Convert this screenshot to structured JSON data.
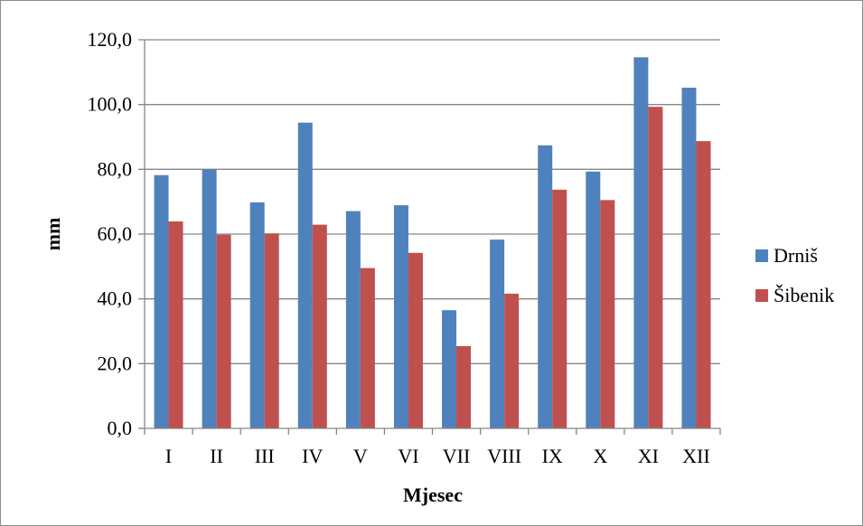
{
  "chart_data": {
    "type": "bar",
    "title": "",
    "xlabel": "Mjesec",
    "ylabel": "mm",
    "categories": [
      "I",
      "II",
      "III",
      "IV",
      "V",
      "VI",
      "VII",
      "VIII",
      "IX",
      "X",
      "XI",
      "XII"
    ],
    "series": [
      {
        "name": "Drniš",
        "color": "#4f81bd",
        "values": [
          78.2,
          80.0,
          69.8,
          94.4,
          67.1,
          68.9,
          36.5,
          58.3,
          87.4,
          79.3,
          114.6,
          105.2
        ]
      },
      {
        "name": "Šibenik",
        "color": "#c0504d",
        "values": [
          63.9,
          59.8,
          60.2,
          62.9,
          49.5,
          54.2,
          25.4,
          41.6,
          73.7,
          70.5,
          99.3,
          88.7
        ]
      }
    ],
    "ylim": [
      0,
      120
    ],
    "yticks": [
      "0,0",
      "20,0",
      "40,0",
      "60,0",
      "80,0",
      "100,0",
      "120,0"
    ],
    "grid": true,
    "legend_position": "right"
  }
}
